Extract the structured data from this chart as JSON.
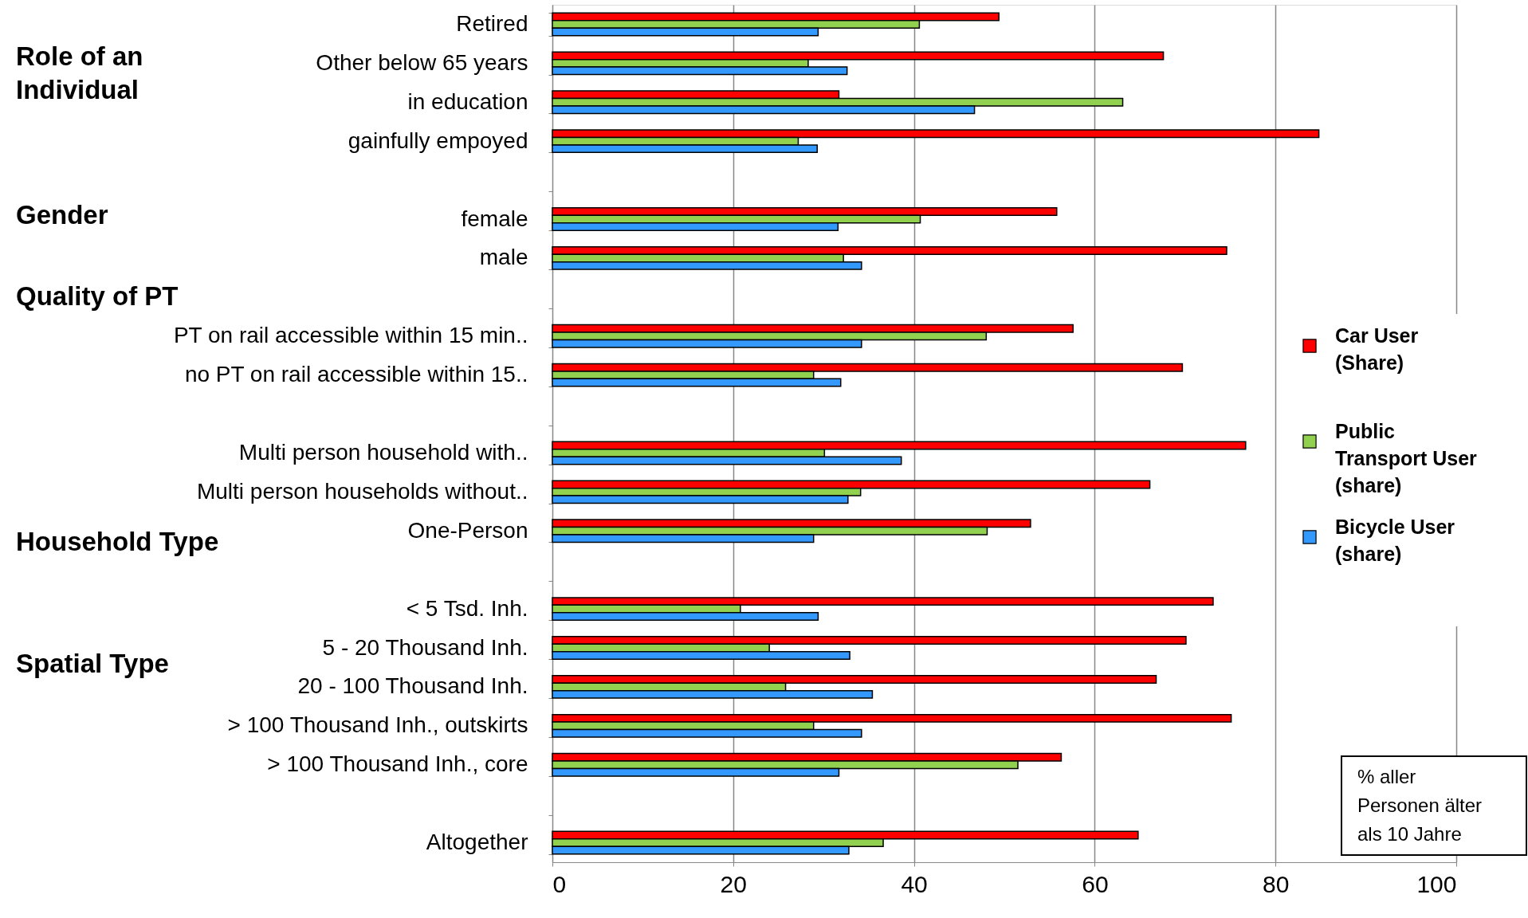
{
  "chart_data": {
    "type": "bar",
    "orientation": "horizontal",
    "categories": [
      "Retired",
      "Other below 65 years",
      "in education",
      "gainfully empoyed",
      null,
      "female",
      "male",
      null,
      "PT on rail accessible within  15 min..",
      "no PT on rail accessible within 15..",
      null,
      "Multi person household  with..",
      "Multi person households without..",
      "One-Person",
      null,
      "< 5 Tsd. Inh.",
      "5 - 20 Thousand Inh.",
      "20 - 100 Thousand Inh.",
      "> 100 Thousand Inh., outskirts",
      "> 100 Thousand Inh., core",
      null,
      "Altogether"
    ],
    "series": [
      {
        "name": "Car User (Share)",
        "color": "#ff0000",
        "values": [
          49.4,
          67.6,
          31.7,
          84.8,
          null,
          55.8,
          74.6,
          null,
          57.6,
          69.7,
          null,
          76.7,
          66.1,
          52.9,
          null,
          73.1,
          70.1,
          66.8,
          75.1,
          56.3,
          null,
          64.8
        ]
      },
      {
        "name": "Public Transport User (share)",
        "color": "#92d050",
        "values": [
          40.6,
          28.3,
          63.1,
          27.2,
          null,
          40.7,
          32.2,
          null,
          48.0,
          28.9,
          null,
          30.1,
          34.1,
          48.1,
          null,
          20.8,
          24.0,
          25.8,
          28.9,
          51.5,
          null,
          36.6
        ]
      },
      {
        "name": "Bicycle User (share)",
        "color": "#3399ff",
        "values": [
          29.4,
          32.6,
          46.7,
          29.3,
          null,
          31.6,
          34.2,
          null,
          34.2,
          31.9,
          null,
          38.6,
          32.7,
          28.9,
          null,
          29.4,
          32.9,
          35.4,
          34.2,
          31.7,
          null,
          32.8
        ]
      }
    ],
    "xlim": [
      0,
      100
    ],
    "xticks": [
      0,
      20,
      40,
      60,
      80,
      100
    ],
    "grid": "x",
    "legend": "right",
    "annotations": [
      "Role of an\nIndividual",
      "Gender",
      "Quality of PT",
      "Household Type",
      "Spatial Type",
      "% aller\nPersonen älter\nals 10 Jahre"
    ]
  }
}
